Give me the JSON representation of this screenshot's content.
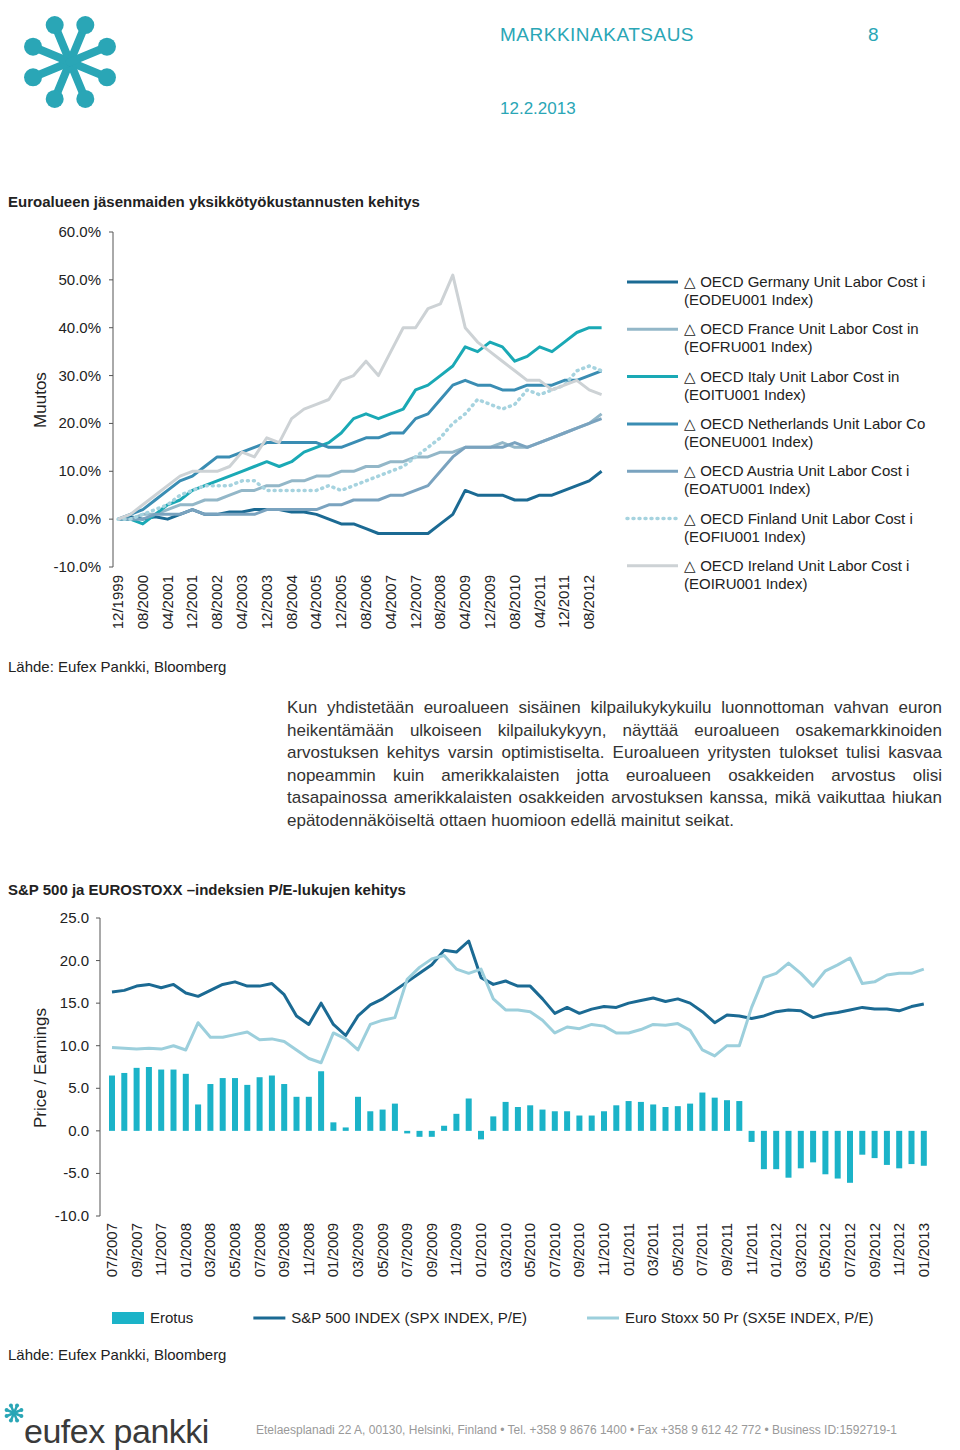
{
  "header": {
    "title": "MARKKINAKATSAUS",
    "page": "8",
    "date": "12.2.2013"
  },
  "chart_data": [
    {
      "type": "line",
      "title": "Euroalueen jäsenmaiden yksikkötyökustannusten kehitys",
      "y_label": "Muutos",
      "source": "Lähde: Eufex Pankki, Bloomberg",
      "categories": [
        "12/1999",
        null,
        "08/2000",
        null,
        "04/2001",
        null,
        "12/2001",
        null,
        "08/2002",
        null,
        "04/2003",
        null,
        "12/2003",
        null,
        "08/2004",
        null,
        "04/2005",
        null,
        "12/2005",
        null,
        "08/2006",
        null,
        "04/2007",
        null,
        "12/2007",
        null,
        "08/2008",
        null,
        "04/2009",
        null,
        "12/2009",
        null,
        "08/2010",
        null,
        "04/2011",
        null,
        "12/2011",
        null,
        "08/2012",
        null
      ],
      "series": [
        {
          "name": "△ OECD Germany Unit Labor Cost i (EODEU001 Index)",
          "color": "#1b6a93",
          "values": [
            0,
            0.5,
            0,
            0.5,
            0,
            1,
            2,
            1,
            1,
            1.5,
            1.5,
            2,
            2,
            2,
            1.5,
            1.5,
            1,
            0,
            -1,
            -1,
            -2,
            -3,
            -3,
            -3,
            -3,
            -3,
            -1,
            1,
            6,
            5,
            5,
            5,
            4,
            4,
            5,
            5,
            6,
            7,
            8,
            10
          ]
        },
        {
          "name": "△ OECD France Unit Labor Cost in (EOFRU001 Index)",
          "color": "#93b7c8",
          "values": [
            0,
            0,
            1,
            1,
            2,
            3,
            3,
            4,
            4,
            5,
            6,
            6,
            7,
            7,
            8,
            8,
            9,
            9,
            10,
            10,
            11,
            11,
            12,
            12,
            13,
            13,
            14,
            14,
            15,
            15,
            15,
            16,
            15,
            15,
            16,
            17,
            18,
            19,
            20,
            22
          ]
        },
        {
          "name": "△ OECD Italy Unit Labor Cost in (EOITU001 Index)",
          "color": "#1aa9b5",
          "values": [
            0,
            0,
            -1,
            1,
            3,
            4,
            6,
            7,
            8,
            9,
            10,
            11,
            12,
            11,
            12,
            14,
            15,
            16,
            18,
            21,
            22,
            21,
            22,
            23,
            27,
            28,
            30,
            32,
            36,
            35,
            37,
            36,
            33,
            34,
            36,
            35,
            37,
            39,
            40,
            40
          ]
        },
        {
          "name": "△ OECD Netherlands Unit Labor Co (EONEU001 Index)",
          "color": "#3a8db3",
          "values": [
            0,
            1,
            2,
            4,
            6,
            8,
            9,
            11,
            13,
            13,
            14,
            15,
            16,
            16,
            16,
            16,
            16,
            15,
            15,
            16,
            17,
            17,
            18,
            18,
            21,
            22,
            25,
            28,
            29,
            28,
            28,
            27,
            27,
            28,
            28,
            28,
            29,
            29,
            30,
            31
          ]
        },
        {
          "name": "△ OECD Austria Unit Labor Cost i (EOATU001 Index)",
          "color": "#7aa3bf",
          "values": [
            0,
            0,
            0,
            1,
            1,
            1,
            2,
            1,
            1,
            1,
            1,
            1,
            2,
            2,
            2,
            2,
            2,
            3,
            3,
            4,
            4,
            4,
            5,
            5,
            6,
            7,
            10,
            13,
            15,
            15,
            15,
            15,
            16,
            15,
            16,
            17,
            18,
            19,
            20,
            21
          ]
        },
        {
          "name": "△ OECD Finland Unit Labor Cost i (EOFIU001 Index)",
          "color": "#a6d3df",
          "line_style": "dotted",
          "values": [
            0,
            0,
            1,
            2,
            3,
            5,
            6,
            7,
            7,
            7,
            8,
            8,
            6,
            6,
            6,
            6,
            6,
            7,
            6,
            7,
            8,
            9,
            10,
            11,
            13,
            15,
            17,
            20,
            22,
            25,
            24,
            23,
            24,
            27,
            26,
            27,
            28,
            31,
            32,
            31
          ]
        },
        {
          "name": "△ OECD Ireland Unit Labor Cost i (EOIRU001 Index)",
          "color": "#cdd2d5",
          "values": [
            0,
            1,
            3,
            5,
            7,
            9,
            10,
            10,
            10,
            11,
            14,
            13,
            17,
            16,
            21,
            23,
            24,
            25,
            29,
            30,
            33,
            30,
            35,
            40,
            40,
            44,
            45,
            51,
            40,
            37,
            35,
            33,
            31,
            29,
            29,
            27,
            28,
            29,
            27,
            26
          ]
        }
      ],
      "ylim": [
        -10,
        60
      ],
      "yticks": [
        {
          "value": -10,
          "label": "-10.0%"
        },
        {
          "value": 0,
          "label": "0.0%"
        },
        {
          "value": 10,
          "label": "10.0%"
        },
        {
          "value": 20,
          "label": "20.0%"
        },
        {
          "value": 30,
          "label": "30.0%"
        },
        {
          "value": 40,
          "label": "40.0%"
        },
        {
          "value": 50,
          "label": "50.0%"
        },
        {
          "value": 60,
          "label": "60.0%"
        }
      ],
      "grid": false,
      "legend": "right"
    },
    {
      "type": "bar",
      "title": "S&P 500 ja EUROSTOXX –indeksien P/E-lukujen kehitys",
      "y_label": "Price / Earnings",
      "source": "Lähde: Eufex Pankki, Bloomberg",
      "categories": [
        "07/2007",
        null,
        "09/2007",
        null,
        "11/2007",
        null,
        "01/2008",
        null,
        "03/2008",
        null,
        "05/2008",
        null,
        "07/2008",
        null,
        "09/2008",
        null,
        "11/2008",
        null,
        "01/2009",
        null,
        "03/2009",
        null,
        "05/2009",
        null,
        "07/2009",
        null,
        "09/2009",
        null,
        "11/2009",
        null,
        "01/2010",
        null,
        "03/2010",
        null,
        "05/2010",
        null,
        "07/2010",
        null,
        "09/2010",
        null,
        "11/2010",
        null,
        "01/2011",
        null,
        "03/2011",
        null,
        "05/2011",
        null,
        "07/2011",
        null,
        "09/2011",
        null,
        "11/2011",
        null,
        "01/2012",
        null,
        "03/2012",
        null,
        "05/2012",
        null,
        "07/2012",
        null,
        "09/2012",
        null,
        "11/2012",
        null,
        "01/2013"
      ],
      "series": [
        {
          "name": "Erotus",
          "type": "bar",
          "color": "#1bb3c8",
          "values": [
            6.5,
            6.8,
            7.4,
            7.5,
            7.2,
            7.2,
            6.7,
            3.1,
            5.5,
            6.2,
            6.2,
            5.4,
            6.3,
            6.5,
            5.5,
            4.0,
            4.0,
            7.0,
            1.0,
            0.4,
            4.0,
            2.3,
            2.5,
            3.2,
            -0.3,
            -0.7,
            -0.7,
            0.6,
            2.0,
            3.8,
            -1.0,
            1.7,
            3.4,
            2.8,
            3.0,
            2.5,
            2.3,
            2.3,
            1.8,
            1.8,
            2.3,
            3.0,
            3.5,
            3.4,
            3.1,
            2.8,
            2.9,
            3.2,
            4.5,
            3.9,
            3.6,
            3.5,
            -1.3,
            -4.5,
            -4.5,
            -5.5,
            -4.4,
            -3.7,
            -5.1,
            -5.6,
            -6.1,
            -2.8,
            -3.2,
            -4.0,
            -4.4,
            -3.9,
            -4.1
          ]
        },
        {
          "name": "S&P 500 INDEX (SPX INDEX, P/E)",
          "type": "line",
          "color": "#1b6a93",
          "values": [
            16.3,
            16.5,
            17,
            17.2,
            16.8,
            17.2,
            16.2,
            15.8,
            16.5,
            17.2,
            17.5,
            17,
            17,
            17.3,
            16,
            13.5,
            12.5,
            15,
            12.5,
            11.2,
            13.5,
            14.8,
            15.5,
            16.5,
            17.5,
            18.5,
            19.5,
            21.2,
            21,
            22.3,
            18,
            17.2,
            17.6,
            17,
            17,
            15.5,
            13.8,
            14.5,
            13.8,
            14.3,
            14.6,
            14.5,
            15,
            15.3,
            15.6,
            15.2,
            15.5,
            15,
            14,
            12.7,
            13.6,
            13.5,
            13.2,
            13.5,
            14,
            14.2,
            14.1,
            13.3,
            13.7,
            13.9,
            14.2,
            14.5,
            14.3,
            14.3,
            14.1,
            14.6,
            14.9
          ]
        },
        {
          "name": "Euro Stoxx 50 Pr (SX5E INDEX, P/E)",
          "type": "line",
          "color": "#9ccfdc",
          "values": [
            9.8,
            9.7,
            9.6,
            9.7,
            9.6,
            10,
            9.5,
            12.7,
            11,
            11,
            11.3,
            11.6,
            10.7,
            10.8,
            10.5,
            9.5,
            8.5,
            8,
            11.5,
            10.8,
            9.5,
            12.5,
            13,
            13.3,
            17.8,
            19.2,
            20.2,
            20.6,
            19,
            18.5,
            19,
            15.5,
            14.2,
            14.2,
            14,
            13,
            11.5,
            12.2,
            12,
            12.5,
            12.3,
            11.5,
            11.5,
            11.9,
            12.5,
            12.4,
            12.6,
            11.8,
            9.5,
            8.8,
            10,
            10,
            14.5,
            18,
            18.5,
            19.7,
            18.5,
            17,
            18.8,
            19.5,
            20.3,
            17.3,
            17.5,
            18.3,
            18.5,
            18.5,
            19
          ]
        }
      ],
      "ylim": [
        -10,
        25
      ],
      "yticks": [
        {
          "value": -10,
          "label": "-10.0"
        },
        {
          "value": -5,
          "label": "-5.0"
        },
        {
          "value": 0,
          "label": "0.0"
        },
        {
          "value": 5,
          "label": "5.0"
        },
        {
          "value": 10,
          "label": "10.0"
        },
        {
          "value": 15,
          "label": "15.0"
        },
        {
          "value": 20,
          "label": "20.0"
        },
        {
          "value": 25,
          "label": "25.0"
        }
      ],
      "grid": false,
      "legend": "bottom"
    }
  ],
  "text": {
    "paragraph": "Kun yhdistetään euroalueen sisäinen kilpailukykykuilu luonnottoman vahvan euron heikentämään ulkoiseen kilpailukykyyn, näyttää euroalueen osakemarkkinoiden arvostuksen kehitys varsin optimistiselta. Euroalueen yritysten tulokset tulisi kasvaa nopeammin kuin amerikkalaisten jotta euroalueen osakkeiden arvostus olisi tasapainossa amerikkalaisten osakkeiden arvostuksen kanssa, mikä vaikuttaa hiukan epätodennäköiseltä ottaen huomioon edellä mainitut seikat."
  },
  "footer": {
    "logo": "eufex pankki",
    "address": "Etelaesplanadi 22 A, 00130, Helsinki, Finland • Tel. +358 9 8676 1400 • Fax +358 9 612 42 772 • Business ID:1592719-1"
  }
}
